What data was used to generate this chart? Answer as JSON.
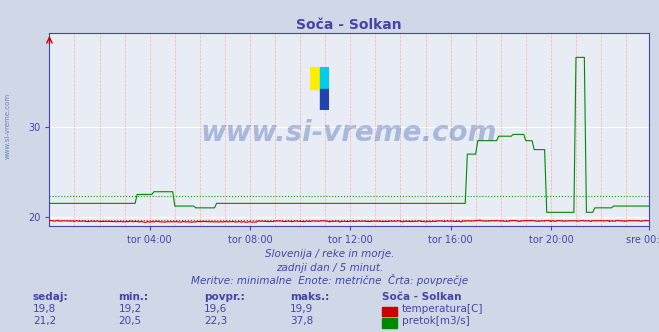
{
  "title": "Soča - Solkan",
  "title_color": "#4444aa",
  "bg_color": "#d0d8e8",
  "plot_bg_color": "#e8ecf4",
  "grid_color_major": "#ffffff",
  "grid_color_minor": "#ffaaaa",
  "xlabel_ticks": [
    "tor 04:00",
    "tor 08:00",
    "tor 12:00",
    "tor 16:00",
    "tor 20:00",
    "sre 00:00"
  ],
  "ytick_labels": [
    "20",
    "30"
  ],
  "ytick_vals": [
    20,
    30
  ],
  "ylim": [
    19.0,
    40.5
  ],
  "xlim": [
    0,
    287
  ],
  "n_points": 288,
  "temp_color": "#cc0000",
  "flow_color": "#008800",
  "temp_avg": 19.6,
  "flow_avg": 22.3,
  "subtitle1": "Slovenija / reke in morje.",
  "subtitle2": "zadnji dan / 5 minut.",
  "subtitle3": "Meritve: minimalne  Enote: metrične  Črta: povprečje",
  "legend_title": "Soča - Solkan",
  "label_temp": "temperatura[C]",
  "label_flow": "pretok[m3/s]",
  "watermark": "www.si-vreme.com",
  "watermark_color": "#3355aa",
  "watermark_alpha": 0.35,
  "stat_headers": [
    "sedaj:",
    "min.:",
    "povpr.:",
    "maks.:"
  ],
  "temp_stats": [
    "19,8",
    "19,2",
    "19,6",
    "19,9"
  ],
  "flow_stats": [
    "21,2",
    "20,5",
    "22,3",
    "37,8"
  ],
  "tick_positions": [
    48,
    96,
    144,
    192,
    240,
    287
  ],
  "logo_colors": [
    "#ffee00",
    "#00ccee",
    "#2244aa"
  ],
  "side_text": "www.si-vreme.com",
  "side_text_color": "#4466aa"
}
